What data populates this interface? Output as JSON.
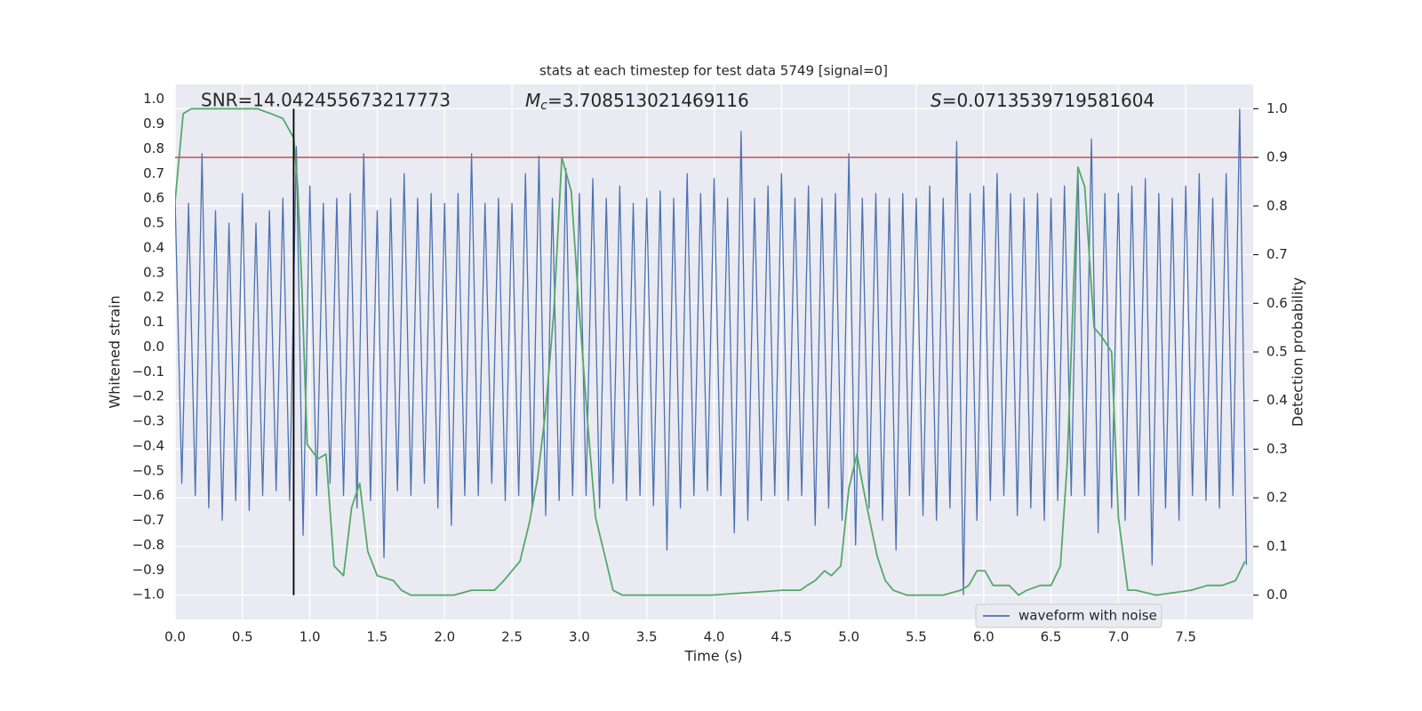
{
  "chart_data": {
    "type": "line",
    "title": "stats at each timestep for test data 5749 [signal=0]",
    "x_label": "Time (s)",
    "y_label": "Whitened strain",
    "y2_label": "Detection probability",
    "annotations": [
      {
        "text": "SNR=14.042455673217773"
      },
      {
        "symbol": "M",
        "subscript": "c",
        "text": "=3.708513021469116"
      },
      {
        "symbol": "S",
        "text": "=0.0713539719581604"
      }
    ],
    "xlim": [
      0,
      8
    ],
    "ylim": [
      -1.1,
      1.06
    ],
    "y2lim": [
      -0.05,
      1.05
    ],
    "xticks": [
      {
        "value": 0,
        "label": "0.0"
      },
      0.5,
      {
        "value": 1,
        "label": "1.0"
      },
      1.5,
      {
        "value": 2,
        "label": "2.0"
      },
      2.5,
      {
        "value": 3,
        "label": "3.0"
      },
      3.5,
      {
        "value": 4,
        "label": "4.0"
      },
      4.5,
      {
        "value": 5,
        "label": "5.0"
      },
      5.5,
      {
        "value": 6,
        "label": "6.0"
      },
      6.5,
      {
        "value": 7,
        "label": "7.0"
      },
      7.5
    ],
    "yticks": [
      {
        "value": -1,
        "label": "−1.0"
      },
      {
        "value": -0.9,
        "label": "−0.9"
      },
      {
        "value": -0.8,
        "label": "−0.8"
      },
      {
        "value": -0.7,
        "label": "−0.7"
      },
      {
        "value": -0.6,
        "label": "−0.6"
      },
      {
        "value": -0.5,
        "label": "−0.5"
      },
      {
        "value": -0.4,
        "label": "−0.4"
      },
      {
        "value": -0.3,
        "label": "−0.3"
      },
      {
        "value": -0.2,
        "label": "−0.2"
      },
      {
        "value": -0.1,
        "label": "−0.1"
      },
      {
        "value": 0,
        "label": "0.0"
      },
      0.1,
      0.2,
      0.3,
      0.4,
      0.5,
      0.6,
      0.7,
      0.8,
      0.9,
      {
        "value": 1,
        "label": "1.0"
      }
    ],
    "y2ticks": [
      {
        "value": 0,
        "label": "0.0"
      },
      0.1,
      0.2,
      0.3,
      0.4,
      0.5,
      0.6,
      0.7,
      0.8,
      0.9,
      {
        "value": 1,
        "label": "1.0"
      }
    ],
    "grid": true,
    "legend": "lower right",
    "series": [
      {
        "name": "waveform with noise",
        "color": "#4c72b0",
        "x": [
          0,
          0.05,
          0.1,
          0.15,
          0.2,
          0.25,
          0.3,
          0.35,
          0.4,
          0.45,
          0.5,
          0.55,
          0.6,
          0.65,
          0.7,
          0.75,
          0.8,
          0.85,
          0.9,
          0.95,
          1,
          1.05,
          1.1,
          1.15,
          1.2,
          1.25,
          1.3,
          1.35,
          1.4,
          1.45,
          1.5,
          1.55,
          1.6,
          1.65,
          1.7,
          1.75,
          1.8,
          1.85,
          1.9,
          1.95,
          2,
          2.05,
          2.1,
          2.15,
          2.2,
          2.25,
          2.3,
          2.35,
          2.4,
          2.45,
          2.5,
          2.55,
          2.6,
          2.65,
          2.7,
          2.75,
          2.8,
          2.85,
          2.9,
          2.95,
          3,
          3.05,
          3.1,
          3.15,
          3.2,
          3.25,
          3.3,
          3.35,
          3.4,
          3.45,
          3.5,
          3.55,
          3.6,
          3.65,
          3.7,
          3.75,
          3.8,
          3.85,
          3.9,
          3.95,
          4,
          4.05,
          4.1,
          4.15,
          4.2,
          4.25,
          4.3,
          4.35,
          4.4,
          4.45,
          4.5,
          4.55,
          4.6,
          4.65,
          4.7,
          4.75,
          4.8,
          4.85,
          4.9,
          4.95,
          5,
          5.05,
          5.1,
          5.15,
          5.2,
          5.25,
          5.3,
          5.35,
          5.4,
          5.45,
          5.5,
          5.55,
          5.6,
          5.65,
          5.7,
          5.75,
          5.8,
          5.85,
          5.9,
          5.95,
          6,
          6.05,
          6.1,
          6.15,
          6.2,
          6.25,
          6.3,
          6.35,
          6.4,
          6.45,
          6.5,
          6.55,
          6.6,
          6.65,
          6.7,
          6.75,
          6.8,
          6.85,
          6.9,
          6.95,
          7,
          7.05,
          7.1,
          7.15,
          7.2,
          7.25,
          7.3,
          7.35,
          7.4,
          7.45,
          7.5,
          7.55,
          7.6,
          7.65,
          7.7,
          7.75,
          7.8,
          7.85,
          7.9,
          7.95
        ],
        "values": [
          0.6,
          -0.55,
          0.58,
          -0.6,
          0.78,
          -0.65,
          0.55,
          -0.7,
          0.5,
          -0.62,
          0.62,
          -0.66,
          0.5,
          -0.6,
          0.55,
          -0.58,
          0.6,
          -0.62,
          0.81,
          -0.76,
          0.65,
          -0.6,
          0.58,
          -0.55,
          0.6,
          -0.6,
          0.62,
          -0.65,
          0.78,
          -0.62,
          0.55,
          -0.85,
          0.6,
          -0.58,
          0.7,
          -0.6,
          0.6,
          -0.55,
          0.62,
          -0.65,
          0.58,
          -0.72,
          0.62,
          -0.6,
          0.78,
          -0.6,
          0.58,
          -0.55,
          0.6,
          -0.62,
          0.58,
          -0.6,
          0.7,
          -0.65,
          0.77,
          -0.68,
          0.6,
          -0.62,
          0.72,
          -0.6,
          0.62,
          -0.6,
          0.68,
          -0.65,
          0.6,
          -0.55,
          0.65,
          -0.62,
          0.58,
          -0.6,
          0.6,
          -0.64,
          0.63,
          -0.82,
          0.6,
          -0.65,
          0.7,
          -0.6,
          0.62,
          -0.58,
          0.68,
          -0.6,
          0.6,
          -0.75,
          0.87,
          -0.7,
          0.6,
          -0.62,
          0.65,
          -0.6,
          0.7,
          -0.62,
          0.6,
          -0.6,
          0.65,
          -0.72,
          0.6,
          -0.65,
          0.62,
          -0.7,
          0.78,
          -0.8,
          0.6,
          -0.65,
          0.62,
          -0.7,
          0.6,
          -0.82,
          0.62,
          -0.6,
          0.6,
          -0.68,
          0.65,
          -0.7,
          0.6,
          -0.65,
          0.83,
          -1.0,
          0.62,
          -0.7,
          0.65,
          -0.62,
          0.7,
          -0.6,
          0.62,
          -0.68,
          0.6,
          -0.65,
          0.62,
          -0.7,
          0.6,
          -0.62,
          0.65,
          -0.6,
          0.72,
          -0.6,
          0.84,
          -0.75,
          0.62,
          -0.65,
          0.62,
          -0.7,
          0.65,
          -0.6,
          0.68,
          -0.88,
          0.62,
          -0.65,
          0.6,
          -0.7,
          0.65,
          -0.6,
          0.7,
          -0.62,
          0.6,
          -0.65,
          0.7,
          -0.6,
          0.96,
          -0.88
        ]
      },
      {
        "color": "#55a868",
        "axis": "y2",
        "x": [
          0,
          0.06,
          0.12,
          0.61,
          0.71,
          0.8,
          0.88,
          0.91,
          0.94,
          0.98,
          1.06,
          1.12,
          1.18,
          1.25,
          1.31,
          1.37,
          1.43,
          1.5,
          1.62,
          1.68,
          1.75,
          2.07,
          2.2,
          2.37,
          2.44,
          2.56,
          2.63,
          2.69,
          2.75,
          2.81,
          2.87,
          2.94,
          2.99,
          3.06,
          3.12,
          3.19,
          3.25,
          3.32,
          3.98,
          4.51,
          4.64,
          4.69,
          4.75,
          4.82,
          4.87,
          4.94,
          5.0,
          5.06,
          5.1,
          5.15,
          5.21,
          5.27,
          5.33,
          5.43,
          5.7,
          5.83,
          5.89,
          5.95,
          6.01,
          6.07,
          6.19,
          6.26,
          6.32,
          6.42,
          6.5,
          6.57,
          6.62,
          6.7,
          6.75,
          6.82,
          6.88,
          6.95,
          7.0,
          7.07,
          7.13,
          7.28,
          7.54,
          7.66,
          7.77,
          7.87,
          7.94
        ],
        "values": [
          0.81,
          0.99,
          1.0,
          1.0,
          0.99,
          0.98,
          0.94,
          0.84,
          0.64,
          0.31,
          0.28,
          0.29,
          0.06,
          0.04,
          0.18,
          0.23,
          0.09,
          0.04,
          0.03,
          0.01,
          0.0,
          0.0,
          0.01,
          0.01,
          0.03,
          0.07,
          0.15,
          0.24,
          0.38,
          0.58,
          0.9,
          0.83,
          0.62,
          0.36,
          0.16,
          0.08,
          0.01,
          0.0,
          0.0,
          0.01,
          0.01,
          0.02,
          0.03,
          0.05,
          0.04,
          0.06,
          0.22,
          0.29,
          0.23,
          0.16,
          0.08,
          0.03,
          0.01,
          0.0,
          0.0,
          0.01,
          0.02,
          0.05,
          0.05,
          0.02,
          0.02,
          0.0,
          0.01,
          0.02,
          0.02,
          0.06,
          0.27,
          0.88,
          0.84,
          0.55,
          0.53,
          0.5,
          0.16,
          0.01,
          0.01,
          0.0,
          0.01,
          0.02,
          0.02,
          0.03,
          0.07
        ]
      }
    ],
    "threshold": {
      "y2": 0.9,
      "color": "#c44e52"
    },
    "marker_line": {
      "x": 0.88,
      "y2min": 0,
      "y2max": 1,
      "color": "#000000"
    }
  }
}
